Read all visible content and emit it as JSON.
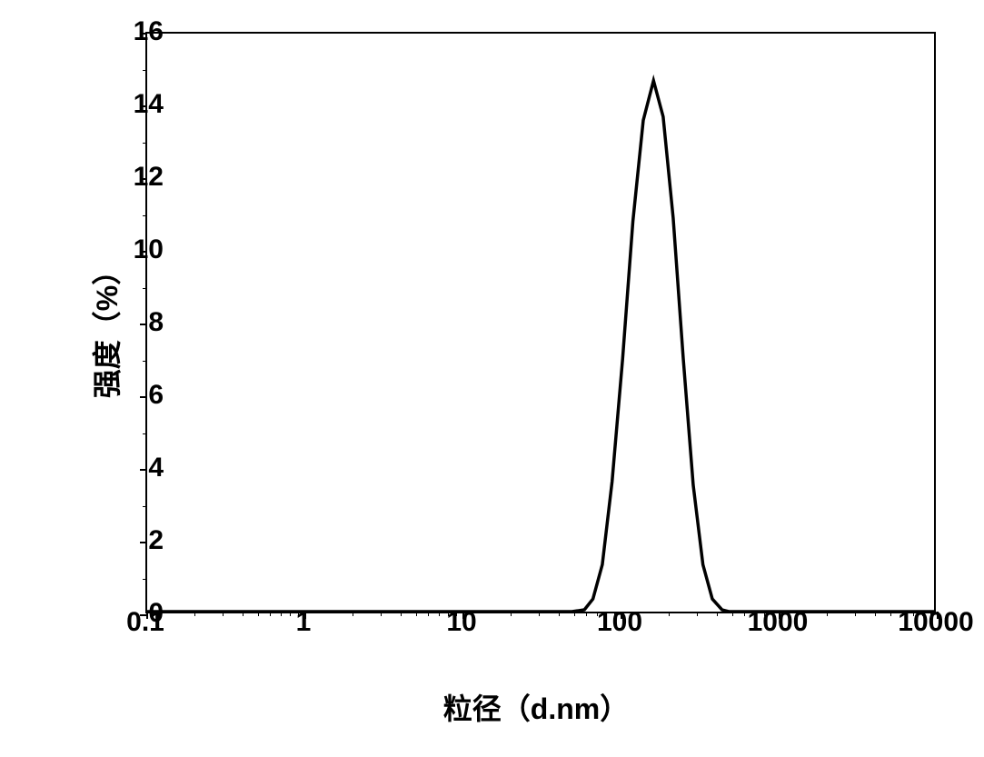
{
  "chart": {
    "type": "line",
    "background_color": "#ffffff",
    "border_color": "#000000",
    "line_color": "#000000",
    "line_width": 3.5,
    "x_scale": "log",
    "xlim": [
      0.1,
      10000
    ],
    "ylim": [
      0,
      16
    ],
    "x_ticks": [
      0.1,
      1,
      10,
      100,
      1000,
      10000
    ],
    "x_tick_labels": [
      "0.1",
      "1",
      "10",
      "100",
      "1000",
      "10000"
    ],
    "y_ticks": [
      0,
      2,
      4,
      6,
      8,
      10,
      12,
      14,
      16
    ],
    "y_tick_labels": [
      "0",
      "2",
      "4",
      "6",
      "8",
      "10",
      "12",
      "14",
      "16"
    ],
    "y_tick_step": 2,
    "x_label": "粒径（d.nm）",
    "y_label": "强度（%）",
    "label_fontsize": 32,
    "tick_fontsize": 30,
    "data_points": [
      {
        "x": 0.1,
        "y": 0
      },
      {
        "x": 50,
        "y": 0
      },
      {
        "x": 60,
        "y": 0.05
      },
      {
        "x": 68,
        "y": 0.35
      },
      {
        "x": 78,
        "y": 1.3
      },
      {
        "x": 90,
        "y": 3.6
      },
      {
        "x": 105,
        "y": 7.0
      },
      {
        "x": 122,
        "y": 10.8
      },
      {
        "x": 142,
        "y": 13.6
      },
      {
        "x": 165,
        "y": 14.7
      },
      {
        "x": 190,
        "y": 13.7
      },
      {
        "x": 220,
        "y": 10.9
      },
      {
        "x": 255,
        "y": 7.0
      },
      {
        "x": 295,
        "y": 3.5
      },
      {
        "x": 340,
        "y": 1.3
      },
      {
        "x": 390,
        "y": 0.35
      },
      {
        "x": 450,
        "y": 0.05
      },
      {
        "x": 500,
        "y": 0
      },
      {
        "x": 10000,
        "y": 0
      }
    ]
  }
}
